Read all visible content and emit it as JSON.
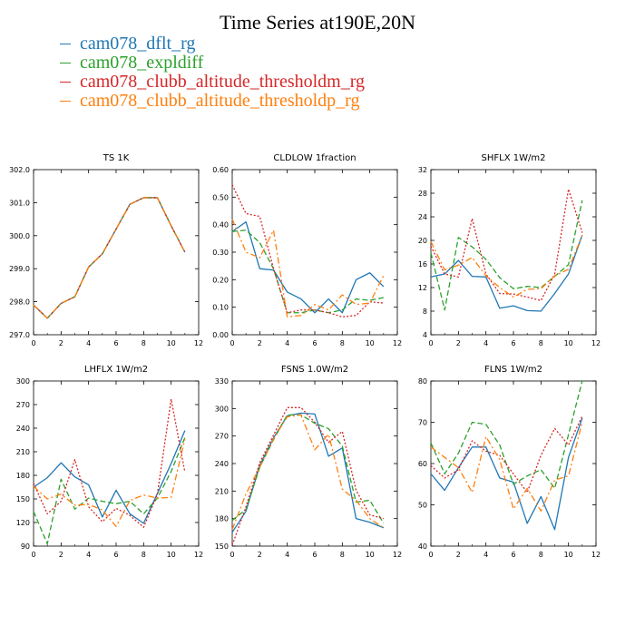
{
  "title": "Time Series at190E,20N",
  "legend": [
    {
      "label": "cam078_dflt_rg",
      "color": "#1f77b4",
      "dash": "solid"
    },
    {
      "label": "cam078_expldiff",
      "color": "#2ca02c",
      "dash": "dashed"
    },
    {
      "label": "cam078_clubb_altitude_thresholdm_rg",
      "color": "#d62728",
      "dash": "dotted"
    },
    {
      "label": "cam078_clubb_altitude_thresholdp_rg",
      "color": "#ff7f0e",
      "dash": "dashdot"
    }
  ],
  "chart_data": [
    {
      "type": "line",
      "title": "TS   1K",
      "x": [
        0,
        1,
        2,
        3,
        4,
        5,
        6,
        7,
        8,
        9,
        10,
        11
      ],
      "xlim": [
        0,
        12
      ],
      "xticks": [
        0,
        2,
        4,
        6,
        8,
        10,
        12
      ],
      "ylim": [
        297.0,
        302.0
      ],
      "yticks": [
        297.0,
        298.0,
        299.0,
        300.0,
        301.0,
        302.0
      ],
      "ytick_labels": [
        "297.0",
        "298.0",
        "299.0",
        "300.0",
        "301.0",
        "302.0"
      ],
      "series": [
        {
          "name": "cam078_dflt_rg",
          "values": [
            297.9,
            297.5,
            297.95,
            298.15,
            299.05,
            299.45,
            300.2,
            300.95,
            301.15,
            301.15,
            300.3,
            299.5
          ]
        },
        {
          "name": "cam078_expldiff",
          "values": [
            297.9,
            297.5,
            297.95,
            298.15,
            299.05,
            299.45,
            300.2,
            300.95,
            301.15,
            301.15,
            300.3,
            299.5
          ]
        },
        {
          "name": "cam078_clubb_altitude_thresholdm_rg",
          "values": [
            297.9,
            297.5,
            297.95,
            298.15,
            299.05,
            299.45,
            300.2,
            300.95,
            301.15,
            301.15,
            300.3,
            299.5
          ]
        },
        {
          "name": "cam078_clubb_altitude_thresholdp_rg",
          "values": [
            297.9,
            297.5,
            297.95,
            298.15,
            299.05,
            299.45,
            300.2,
            300.95,
            301.15,
            301.15,
            300.3,
            299.5
          ]
        }
      ]
    },
    {
      "type": "line",
      "title": "CLDLOW   1fraction",
      "x": [
        0,
        1,
        2,
        3,
        4,
        5,
        6,
        7,
        8,
        9,
        10,
        11
      ],
      "xlim": [
        0,
        12
      ],
      "xticks": [
        0,
        2,
        4,
        6,
        8,
        10,
        12
      ],
      "ylim": [
        0.0,
        0.6
      ],
      "yticks": [
        0.0,
        0.1,
        0.2,
        0.3,
        0.4,
        0.5,
        0.6
      ],
      "ytick_labels": [
        "0.00",
        "0.10",
        "0.20",
        "0.30",
        "0.40",
        "0.50",
        "0.60"
      ],
      "series": [
        {
          "name": "cam078_dflt_rg",
          "values": [
            0.375,
            0.41,
            0.24,
            0.235,
            0.155,
            0.13,
            0.08,
            0.13,
            0.08,
            0.2,
            0.225,
            0.175
          ]
        },
        {
          "name": "cam078_expldiff",
          "values": [
            0.375,
            0.38,
            0.335,
            0.24,
            0.08,
            0.08,
            0.09,
            0.08,
            0.09,
            0.13,
            0.125,
            0.135
          ]
        },
        {
          "name": "cam078_clubb_altitude_thresholdm_rg",
          "values": [
            0.545,
            0.44,
            0.43,
            0.24,
            0.08,
            0.09,
            0.09,
            0.08,
            0.065,
            0.07,
            0.12,
            0.115
          ]
        },
        {
          "name": "cam078_clubb_altitude_thresholdp_rg",
          "values": [
            0.42,
            0.3,
            0.28,
            0.38,
            0.065,
            0.07,
            0.11,
            0.09,
            0.145,
            0.11,
            0.115,
            0.215
          ]
        }
      ]
    },
    {
      "type": "line",
      "title": "SHFLX   1W/m2",
      "x": [
        0,
        1,
        2,
        3,
        4,
        5,
        6,
        7,
        8,
        9,
        10,
        11
      ],
      "xlim": [
        0,
        12
      ],
      "xticks": [
        0,
        2,
        4,
        6,
        8,
        10,
        12
      ],
      "ylim": [
        4,
        32
      ],
      "yticks": [
        4,
        8,
        12,
        16,
        20,
        24,
        28,
        32
      ],
      "ytick_labels": [
        "4",
        "8",
        "12",
        "16",
        "20",
        "24",
        "28",
        "32"
      ],
      "series": [
        {
          "name": "cam078_dflt_rg",
          "values": [
            13.8,
            14.3,
            16.6,
            13.9,
            13.8,
            8.5,
            8.9,
            8.1,
            8.0,
            11.0,
            14.3,
            20.9
          ]
        },
        {
          "name": "cam078_expldiff",
          "values": [
            17.9,
            8.2,
            20.5,
            18.9,
            16.8,
            13.7,
            11.8,
            12.2,
            12.0,
            13.9,
            15.9,
            26.8
          ]
        },
        {
          "name": "cam078_clubb_altitude_thresholdm_rg",
          "values": [
            19.0,
            14.3,
            13.8,
            23.7,
            14.3,
            11.0,
            10.9,
            10.4,
            9.8,
            14.3,
            28.7,
            21.3
          ]
        },
        {
          "name": "cam078_clubb_altitude_thresholdp_rg",
          "values": [
            19.8,
            15.0,
            15.8,
            17.1,
            14.0,
            12.0,
            10.4,
            11.7,
            11.8,
            14.0,
            15.1,
            20.9
          ]
        }
      ]
    },
    {
      "type": "line",
      "title": "LHFLX   1W/m2",
      "x": [
        0,
        1,
        2,
        3,
        4,
        5,
        6,
        7,
        8,
        9,
        10,
        11
      ],
      "xlim": [
        0,
        12
      ],
      "xticks": [
        0,
        2,
        4,
        6,
        8,
        10,
        12
      ],
      "ylim": [
        90,
        300
      ],
      "yticks": [
        90,
        120,
        150,
        180,
        210,
        240,
        270,
        300
      ],
      "ytick_labels": [
        "90",
        "120",
        "150",
        "180",
        "210",
        "240",
        "270",
        "300"
      ],
      "series": [
        {
          "name": "cam078_dflt_rg",
          "values": [
            165,
            177,
            196,
            178,
            168,
            127,
            161,
            131,
            119,
            157,
            195,
            237
          ]
        },
        {
          "name": "cam078_expldiff",
          "values": [
            134,
            93,
            175,
            137,
            151,
            147,
            144,
            147,
            131,
            151,
            185,
            228
          ]
        },
        {
          "name": "cam078_clubb_altitude_thresholdm_rg",
          "values": [
            170,
            131,
            147,
            200,
            140,
            121,
            138,
            129,
            114,
            156,
            277,
            184
          ]
        },
        {
          "name": "cam078_clubb_altitude_thresholdp_rg",
          "values": [
            166,
            150,
            156,
            142,
            143,
            136,
            115,
            148,
            155,
            151,
            152,
            226
          ]
        }
      ]
    },
    {
      "type": "line",
      "title": "FSNS   1.0W/m2",
      "x": [
        0,
        1,
        2,
        3,
        4,
        5,
        6,
        7,
        8,
        9,
        10,
        11
      ],
      "xlim": [
        0,
        12
      ],
      "xticks": [
        0,
        2,
        4,
        6,
        8,
        10,
        12
      ],
      "ylim": [
        150,
        330
      ],
      "yticks": [
        150,
        180,
        210,
        240,
        270,
        300,
        330
      ],
      "ytick_labels": [
        "150",
        "180",
        "210",
        "240",
        "270",
        "300",
        "330"
      ],
      "series": [
        {
          "name": "cam078_dflt_rg",
          "values": [
            165,
            188,
            238,
            268,
            292,
            295,
            294,
            248,
            257,
            180,
            176,
            170
          ]
        },
        {
          "name": "cam078_expldiff",
          "values": [
            178,
            190,
            236,
            266,
            293,
            293,
            284,
            278,
            259,
            198,
            200,
            175
          ]
        },
        {
          "name": "cam078_clubb_altitude_thresholdm_rg",
          "values": [
            151,
            193,
            241,
            271,
            301,
            301,
            285,
            263,
            275,
            211,
            184,
            180
          ]
        },
        {
          "name": "cam078_clubb_altitude_thresholdp_rg",
          "values": [
            168,
            207,
            236,
            267,
            291,
            293,
            255,
            272,
            212,
            200,
            180,
            170
          ]
        }
      ]
    },
    {
      "type": "line",
      "title": "FLNS   1W/m2",
      "x": [
        0,
        1,
        2,
        3,
        4,
        5,
        6,
        7,
        8,
        9,
        10,
        11
      ],
      "xlim": [
        0,
        12
      ],
      "xticks": [
        0,
        2,
        4,
        6,
        8,
        10,
        12
      ],
      "ylim": [
        40,
        80
      ],
      "yticks": [
        40,
        50,
        60,
        70,
        80
      ],
      "ytick_labels": [
        "40",
        "50",
        "60",
        "70",
        "80"
      ],
      "series": [
        {
          "name": "cam078_dflt_rg",
          "values": [
            57.5,
            53.5,
            59,
            64,
            64,
            56.5,
            55.5,
            45.5,
            52,
            44,
            61.5,
            71
          ]
        },
        {
          "name": "cam078_expldiff",
          "values": [
            65,
            57.5,
            62.5,
            70,
            69.5,
            64.5,
            55,
            57,
            58.5,
            54,
            67,
            80
          ]
        },
        {
          "name": "cam078_clubb_altitude_thresholdm_rg",
          "values": [
            59.5,
            56.5,
            58.5,
            65.5,
            63,
            62,
            57.5,
            53,
            62,
            68.5,
            64.5,
            71.5
          ]
        },
        {
          "name": "cam078_clubb_altitude_thresholdp_rg",
          "values": [
            64,
            61.5,
            59,
            53,
            66.5,
            61,
            49,
            54,
            48.5,
            56,
            57,
            70
          ]
        }
      ]
    }
  ]
}
